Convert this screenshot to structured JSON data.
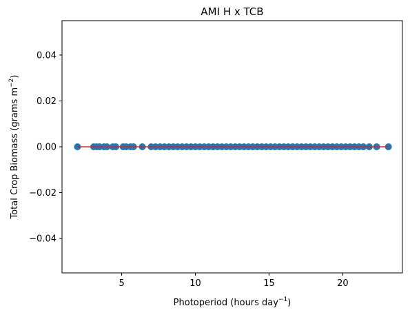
{
  "chart_data": {
    "type": "scatter",
    "title": "AMI H x TCB",
    "xlabel": "Photoperiod (hours day",
    "xlabel_sup": "−1",
    "xlabel_end": ")",
    "ylabel": "Total Crop Biomass (grams m",
    "ylabel_sup": "−2",
    "ylabel_end": ")",
    "xlim": [
      0.95,
      24.05
    ],
    "ylim": [
      -0.055,
      0.055
    ],
    "xticks": [
      5,
      10,
      15,
      20
    ],
    "xtick_labels": [
      "5",
      "10",
      "15",
      "20"
    ],
    "yticks": [
      -0.04,
      -0.02,
      0.0,
      0.02,
      0.04
    ],
    "ytick_labels": [
      "−0.04",
      "−0.02",
      "0.00",
      "0.02",
      "0.04"
    ],
    "grid": false,
    "series": [
      {
        "marker_color": "#1f77b4",
        "x": [
          2.0,
          3.1,
          3.3,
          3.5,
          3.8,
          4.0,
          4.4,
          4.6,
          5.1,
          5.3,
          5.6,
          5.8,
          6.4,
          7.0,
          7.3,
          7.6,
          7.9,
          8.2,
          8.5,
          8.8,
          9.1,
          9.4,
          9.7,
          10.0,
          10.3,
          10.6,
          10.9,
          11.2,
          11.5,
          11.8,
          12.1,
          12.4,
          12.7,
          13.0,
          13.3,
          13.6,
          13.9,
          14.2,
          14.5,
          14.8,
          15.1,
          15.4,
          15.7,
          16.0,
          16.3,
          16.6,
          16.9,
          17.2,
          17.5,
          17.8,
          18.1,
          18.4,
          18.7,
          19.0,
          19.3,
          19.6,
          19.9,
          20.2,
          20.5,
          20.8,
          21.1,
          21.4,
          21.8,
          22.3,
          23.1
        ],
        "y": [
          0,
          0,
          0,
          0,
          0,
          0,
          0,
          0,
          0,
          0,
          0,
          0,
          0,
          0,
          0,
          0,
          0,
          0,
          0,
          0,
          0,
          0,
          0,
          0,
          0,
          0,
          0,
          0,
          0,
          0,
          0,
          0,
          0,
          0,
          0,
          0,
          0,
          0,
          0,
          0,
          0,
          0,
          0,
          0,
          0,
          0,
          0,
          0,
          0,
          0,
          0,
          0,
          0,
          0,
          0,
          0,
          0,
          0,
          0,
          0,
          0,
          0,
          0,
          0,
          0
        ]
      }
    ],
    "fit_line": {
      "color": "#d62728",
      "x": [
        2.0,
        23.1
      ],
      "y": [
        0,
        0
      ]
    }
  }
}
